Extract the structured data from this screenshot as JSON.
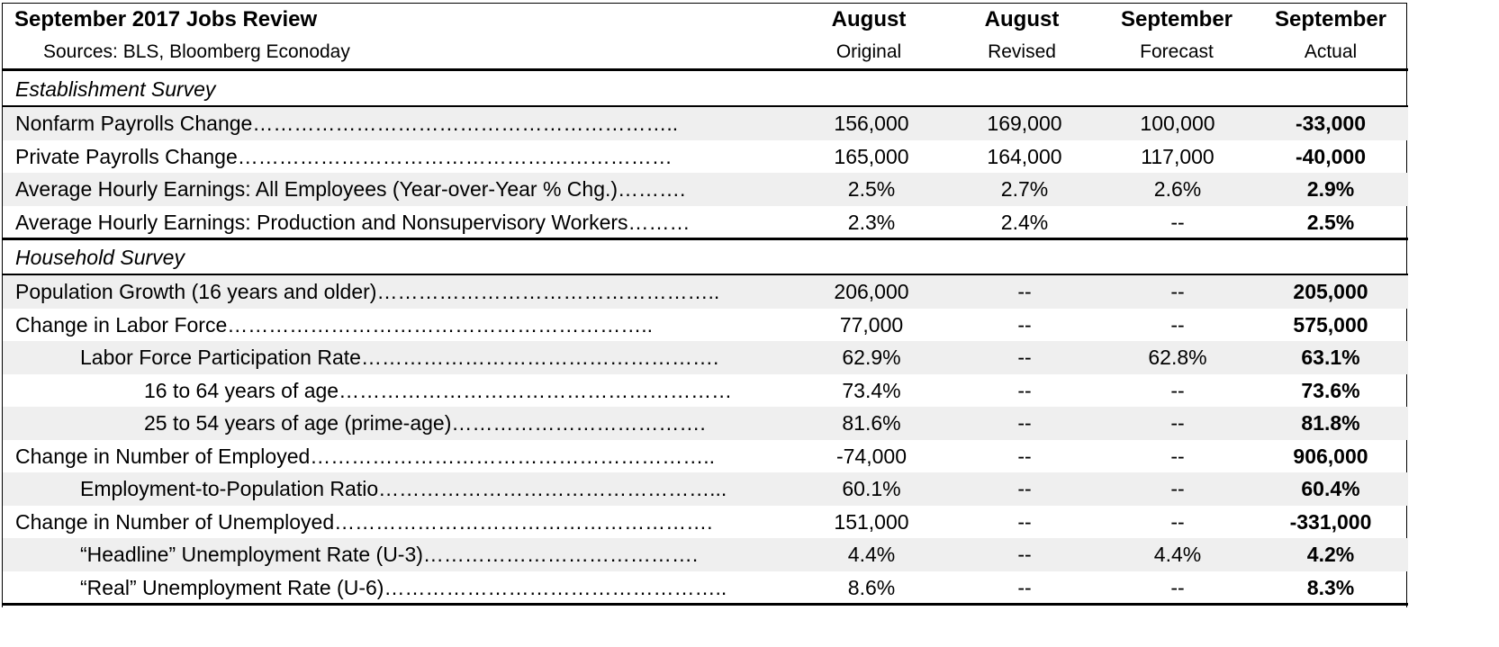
{
  "header": {
    "title": "September 2017 Jobs Review",
    "sources": "Sources: BLS, Bloomberg Econoday",
    "columns": [
      {
        "title": "August",
        "sub": "Original"
      },
      {
        "title": "August",
        "sub": "Revised"
      },
      {
        "title": "September",
        "sub": "Forecast"
      },
      {
        "title": "September",
        "sub": "Actual"
      }
    ]
  },
  "sections": [
    {
      "name": "Establishment Survey",
      "rows": [
        {
          "label": "Nonfarm Payrolls Change",
          "dots": "……………………………………………………..",
          "indent": 0,
          "values": [
            "156,000",
            "169,000",
            "100,000",
            "-33,000"
          ]
        },
        {
          "label": "Private Payrolls Change",
          "dots": "………………………………………………………",
          "indent": 0,
          "values": [
            "165,000",
            "164,000",
            "117,000",
            "-40,000"
          ]
        },
        {
          "label": "Average Hourly Earnings: All Employees (Year-over-Year % Chg.)",
          "dots": "……….",
          "indent": 0,
          "values": [
            "2.5%",
            "2.7%",
            "2.6%",
            "2.9%"
          ]
        },
        {
          "label": "Average Hourly Earnings: Production and Nonsupervisory Workers",
          "dots": "………",
          "indent": 0,
          "values": [
            "2.3%",
            "2.4%",
            "--",
            "2.5%"
          ]
        }
      ]
    },
    {
      "name": "Household Survey",
      "rows": [
        {
          "label": "Population Growth (16 years and older)",
          "dots": "…………………………………………..",
          "indent": 0,
          "values": [
            "206,000",
            "--",
            "--",
            "205,000"
          ]
        },
        {
          "label": "Change in Labor Force",
          "dots": "……………………………………………………..",
          "indent": 0,
          "values": [
            "77,000",
            "--",
            "--",
            "575,000"
          ]
        },
        {
          "label": "Labor Force Participation Rate",
          "dots": "…………………………………………….",
          "indent": 1,
          "values": [
            "62.9%",
            "--",
            "62.8%",
            "63.1%"
          ]
        },
        {
          "label": "16 to 64 years of age",
          "dots": "…………………………………………………",
          "indent": 2,
          "values": [
            "73.4%",
            "--",
            "--",
            "73.6%"
          ]
        },
        {
          "label": "25 to 54 years of age (prime-age)",
          "dots": "……………………………….",
          "indent": 2,
          "values": [
            "81.6%",
            "--",
            "--",
            "81.8%"
          ]
        },
        {
          "label": "Change in Number of Employed",
          "dots": "…………………………………………………..",
          "indent": 0,
          "values": [
            "-74,000",
            "--",
            "--",
            "906,000"
          ]
        },
        {
          "label": "Employment-to-Population Ratio",
          "dots": "…………………………………………...",
          "indent": 1,
          "values": [
            "60.1%",
            "--",
            "--",
            "60.4%"
          ]
        },
        {
          "label": "Change in Number of Unemployed",
          "dots": "……………………………………………….",
          "indent": 0,
          "values": [
            "151,000",
            "--",
            "--",
            "-331,000"
          ]
        },
        {
          "label": "“Headline” Unemployment Rate (U-3)",
          "dots": "………………………………….",
          "indent": 1,
          "values": [
            "4.4%",
            "--",
            "4.4%",
            "4.2%"
          ]
        },
        {
          "label": "“Real” Unemployment Rate (U-6)",
          "dots": "…………………………………………..",
          "indent": 1,
          "values": [
            "8.6%",
            "--",
            "--",
            "8.3%"
          ]
        }
      ]
    }
  ]
}
